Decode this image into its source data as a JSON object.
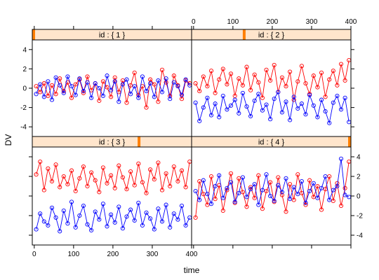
{
  "chart_data": {
    "type": "line",
    "xlabel": "time",
    "ylabel": "DV",
    "xlim": [
      -5,
      400
    ],
    "ylim": [
      -5,
      5
    ],
    "x_ticks": [
      0,
      100,
      200,
      300,
      400
    ],
    "y_ticks": [
      -4,
      -2,
      0,
      2,
      4
    ],
    "x_tick_labels": [
      "0",
      "100",
      "200",
      "300",
      "400"
    ],
    "y_tick_labels": [
      "-4",
      "-2",
      "0",
      "2",
      "4"
    ],
    "series_colors": [
      "#ff0000",
      "#0000ff"
    ],
    "marker": "open-circle",
    "strip_color": "#ffe5cc",
    "strip_indicator_color": "#ff7f00",
    "layout": "2x2 panels, top row ids 1-2, bottom row ids 3-4",
    "panels": [
      {
        "label": "id : { 1 }",
        "strip_level": 0.0,
        "series": [
          {
            "x": [
              5,
              15,
              25,
              35,
              45,
              55,
              65,
              75,
              85,
              95,
              105,
              115,
              125,
              135,
              145,
              155,
              165,
              175,
              185,
              195,
              205,
              215,
              225,
              235,
              245,
              255,
              265,
              275,
              285,
              295,
              305,
              315,
              325,
              335,
              345,
              355,
              365,
              375,
              385,
              395
            ],
            "values": [
              0.2,
              -0.4,
              0.5,
              -0.8,
              0.3,
              -0.6,
              1.0,
              -0.3,
              0.6,
              -1.0,
              0.4,
              0.9,
              -0.5,
              1.2,
              -0.2,
              0.5,
              -1.3,
              0.7,
              0.1,
              -0.9,
              1.1,
              -0.4,
              0.8,
              -1.5,
              0.3,
              1.6,
              -0.7,
              0.2,
              -2.0,
              0.9,
              0.4,
              -1.4,
              1.9,
              0.6,
              -0.8,
              1.3,
              0.3,
              -1.1,
              0.8,
              0.5
            ]
          },
          {
            "x": [
              5,
              15,
              25,
              35,
              45,
              55,
              65,
              75,
              85,
              95,
              105,
              115,
              125,
              135,
              145,
              155,
              165,
              175,
              185,
              195,
              205,
              215,
              225,
              235,
              245,
              255,
              265,
              275,
              285,
              295,
              305,
              315,
              325,
              335,
              345,
              355,
              365,
              375,
              385,
              395
            ],
            "values": [
              -0.6,
              0.4,
              -0.9,
              0.7,
              -1.2,
              1.1,
              0.3,
              -0.5,
              1.2,
              0.2,
              -0.7,
              1.0,
              -0.3,
              0.6,
              -1.0,
              0.5,
              0.0,
              -0.8,
              1.3,
              -0.2,
              0.7,
              -1.4,
              0.4,
              0.9,
              -0.6,
              0.2,
              -1.0,
              1.2,
              -0.3,
              0.5,
              -0.9,
              0.8,
              -0.4,
              1.0,
              -1.1,
              0.6,
              0.2,
              -0.7,
              0.9,
              0.3
            ]
          }
        ]
      },
      {
        "label": "id : { 2 }",
        "strip_level": 0.33,
        "series": [
          {
            "x": [
              5,
              15,
              25,
              35,
              45,
              55,
              65,
              75,
              85,
              95,
              105,
              115,
              125,
              135,
              145,
              155,
              165,
              175,
              185,
              195,
              205,
              215,
              225,
              235,
              245,
              255,
              265,
              275,
              285,
              295,
              305,
              315,
              325,
              335,
              345,
              355,
              365,
              375,
              385,
              395
            ],
            "values": [
              0.5,
              -0.3,
              1.2,
              0.2,
              1.8,
              -0.5,
              0.9,
              2.0,
              0.4,
              1.5,
              -0.8,
              1.0,
              0.3,
              2.2,
              -0.2,
              1.4,
              0.6,
              -1.0,
              1.9,
              0.8,
              2.4,
              -0.4,
              1.1,
              0.2,
              1.7,
              -1.2,
              0.7,
              2.3,
              0.5,
              -0.6,
              1.3,
              0.1,
              1.6,
              -0.9,
              0.9,
              1.8,
              0.3,
              2.5,
              0.8,
              2.9
            ]
          },
          {
            "x": [
              5,
              15,
              25,
              35,
              45,
              55,
              65,
              75,
              85,
              95,
              105,
              115,
              125,
              135,
              145,
              155,
              165,
              175,
              185,
              195,
              205,
              215,
              225,
              235,
              245,
              255,
              265,
              275,
              285,
              295,
              305,
              315,
              325,
              335,
              345,
              355,
              365,
              375,
              385,
              395
            ],
            "values": [
              -1.5,
              -3.4,
              -2.0,
              -1.0,
              -2.8,
              -1.6,
              -3.0,
              -0.8,
              -2.2,
              -1.8,
              -1.2,
              -2.6,
              -0.5,
              -1.9,
              -2.9,
              -1.3,
              -0.6,
              -2.3,
              -1.7,
              -3.2,
              -1.1,
              -0.4,
              -2.5,
              -1.4,
              -3.3,
              -0.9,
              -2.1,
              -1.6,
              -2.7,
              -0.7,
              -1.8,
              -3.0,
              -1.2,
              -2.4,
              -3.6,
              -1.5,
              -0.8,
              -2.2,
              -1.0,
              -3.5
            ]
          }
        ]
      },
      {
        "label": "id : { 3 }",
        "strip_level": 0.67,
        "series": [
          {
            "x": [
              5,
              15,
              25,
              35,
              45,
              55,
              65,
              75,
              85,
              95,
              105,
              115,
              125,
              135,
              145,
              155,
              165,
              175,
              185,
              195,
              205,
              215,
              225,
              235,
              245,
              255,
              265,
              275,
              285,
              295,
              305,
              315,
              325,
              335,
              345,
              355,
              365,
              375,
              385,
              395
            ],
            "values": [
              2.2,
              3.5,
              0.6,
              2.8,
              1.5,
              3.2,
              0.9,
              2.0,
              1.2,
              2.6,
              0.5,
              1.8,
              3.0,
              1.0,
              2.4,
              1.6,
              0.4,
              2.9,
              1.3,
              2.1,
              0.8,
              3.1,
              1.9,
              0.7,
              2.5,
              1.1,
              3.3,
              1.4,
              0.3,
              2.7,
              1.7,
              3.4,
              0.6,
              2.3,
              1.0,
              3.0,
              1.5,
              2.6,
              0.9,
              3.5
            ]
          },
          {
            "x": [
              5,
              15,
              25,
              35,
              45,
              55,
              65,
              75,
              85,
              95,
              105,
              115,
              125,
              135,
              145,
              155,
              165,
              175,
              185,
              195,
              205,
              215,
              225,
              235,
              245,
              255,
              265,
              275,
              285,
              295,
              305,
              315,
              325,
              335,
              345,
              355,
              365,
              375,
              385,
              395
            ],
            "values": [
              -3.4,
              -1.8,
              -2.6,
              -3.0,
              -1.2,
              -2.2,
              -3.6,
              -1.5,
              -2.8,
              -0.6,
              -3.2,
              -2.0,
              -1.0,
              -2.9,
              -3.5,
              -1.6,
              -2.4,
              -0.8,
              -3.1,
              -1.9,
              -2.7,
              -1.1,
              -3.3,
              -2.1,
              -1.4,
              -2.5,
              -0.7,
              -3.0,
              -1.7,
              -2.3,
              -3.4,
              -1.3,
              -2.6,
              -0.9,
              -3.2,
              -1.8,
              -2.4,
              -1.0,
              -3.0,
              -2.2
            ]
          }
        ]
      },
      {
        "label": "id : { 4 }",
        "strip_level": 1.0,
        "series": [
          {
            "x": [
              5,
              15,
              25,
              35,
              45,
              55,
              65,
              75,
              85,
              95,
              105,
              115,
              125,
              135,
              145,
              155,
              165,
              175,
              185,
              195,
              205,
              215,
              225,
              235,
              245,
              255,
              265,
              275,
              285,
              295,
              305,
              315,
              325,
              335,
              345,
              355,
              365,
              375,
              385,
              395
            ],
            "values": [
              -2.2,
              1.5,
              0.2,
              -0.9,
              2.0,
              -0.3,
              1.1,
              -1.5,
              0.6,
              2.3,
              -0.7,
              1.8,
              0.4,
              -1.1,
              0.9,
              -0.2,
              2.1,
              -1.3,
              0.5,
              1.4,
              -0.6,
              1.9,
              0.1,
              -1.6,
              1.2,
              -0.4,
              2.2,
              0.3,
              -0.9,
              1.6,
              -0.1,
              1.0,
              -1.4,
              0.7,
              2.0,
              -0.5,
              1.3,
              -1.0,
              0.8,
              3.5
            ]
          },
          {
            "x": [
              5,
              15,
              25,
              35,
              45,
              55,
              65,
              75,
              85,
              95,
              105,
              115,
              125,
              135,
              145,
              155,
              165,
              175,
              185,
              195,
              205,
              215,
              225,
              235,
              245,
              255,
              265,
              275,
              285,
              295,
              305,
              315,
              325,
              335,
              345,
              355,
              365,
              375,
              385,
              395
            ],
            "values": [
              0.5,
              -0.4,
              1.6,
              0.2,
              -0.8,
              1.0,
              2.1,
              -0.2,
              0.8,
              1.4,
              -0.6,
              0.3,
              1.9,
              -0.1,
              0.7,
              1.2,
              -0.9,
              0.6,
              2.2,
              0.0,
              -0.5,
              1.1,
              0.4,
              1.8,
              -0.3,
              0.9,
              0.2,
              1.5,
              -0.7,
              0.5,
              1.3,
              -0.2,
              0.8,
              2.0,
              -0.4,
              0.6,
              1.0,
              3.8,
              0.1,
              -0.1
            ]
          }
        ]
      }
    ]
  }
}
